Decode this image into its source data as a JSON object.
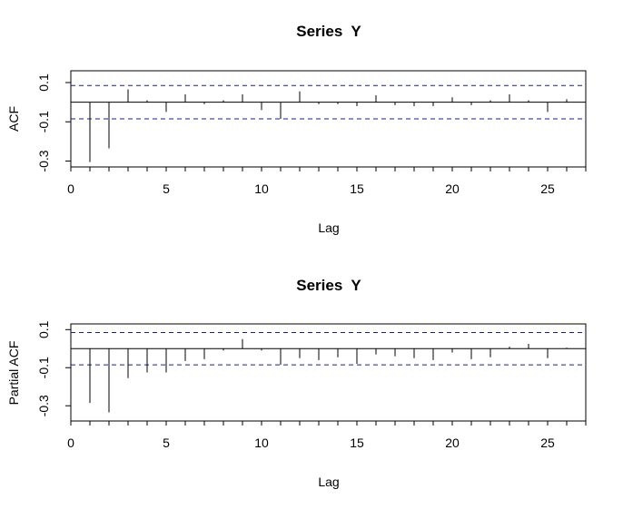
{
  "colors": {
    "confidence_band": "#1a1aa6",
    "spikes": "#000000",
    "background": "#ffffff"
  },
  "chart_data": [
    {
      "type": "bar",
      "title": "Series  Y",
      "xlabel": "Lag",
      "ylabel": "ACF",
      "xlim": [
        0,
        27
      ],
      "ylim": [
        -0.33,
        0.16
      ],
      "x_ticks": [
        "0",
        "5",
        "10",
        "15",
        "20",
        "25"
      ],
      "y_ticks": [
        "-0.3",
        "-0.1",
        "0.1"
      ],
      "y_tick_values": [
        -0.3,
        -0.1,
        0.1
      ],
      "confidence_band": [
        -0.085,
        0.085
      ],
      "x": [
        1,
        2,
        3,
        4,
        5,
        6,
        7,
        8,
        9,
        10,
        11,
        12,
        13,
        14,
        15,
        16,
        17,
        18,
        19,
        20,
        21,
        22,
        23,
        24,
        25,
        26
      ],
      "values": [
        -0.305,
        -0.235,
        0.065,
        0.01,
        -0.05,
        0.04,
        -0.01,
        0.01,
        0.04,
        -0.04,
        -0.085,
        0.055,
        -0.01,
        -0.01,
        -0.02,
        0.035,
        -0.015,
        -0.02,
        -0.02,
        0.025,
        -0.015,
        0.01,
        0.04,
        0.01,
        -0.05,
        0.015
      ]
    },
    {
      "type": "bar",
      "title": "Series  Y",
      "xlabel": "Lag",
      "ylabel": "Partial ACF",
      "xlim": [
        0,
        27
      ],
      "ylim": [
        -0.38,
        0.13
      ],
      "x_ticks": [
        "0",
        "5",
        "10",
        "15",
        "20",
        "25"
      ],
      "y_ticks": [
        "-0.3",
        "-0.1",
        "0.1"
      ],
      "y_tick_values": [
        -0.3,
        -0.1,
        0.1
      ],
      "confidence_band": [
        -0.085,
        0.085
      ],
      "x": [
        1,
        2,
        3,
        4,
        5,
        6,
        7,
        8,
        9,
        10,
        11,
        12,
        13,
        14,
        15,
        16,
        17,
        18,
        19,
        20,
        21,
        22,
        23,
        24,
        25,
        26
      ],
      "values": [
        -0.285,
        -0.335,
        -0.155,
        -0.125,
        -0.125,
        -0.065,
        -0.055,
        -0.01,
        0.05,
        -0.01,
        -0.085,
        -0.05,
        -0.06,
        -0.045,
        -0.08,
        -0.03,
        -0.04,
        -0.05,
        -0.06,
        -0.02,
        -0.055,
        -0.045,
        0.01,
        0.025,
        -0.05,
        0.005
      ]
    }
  ]
}
